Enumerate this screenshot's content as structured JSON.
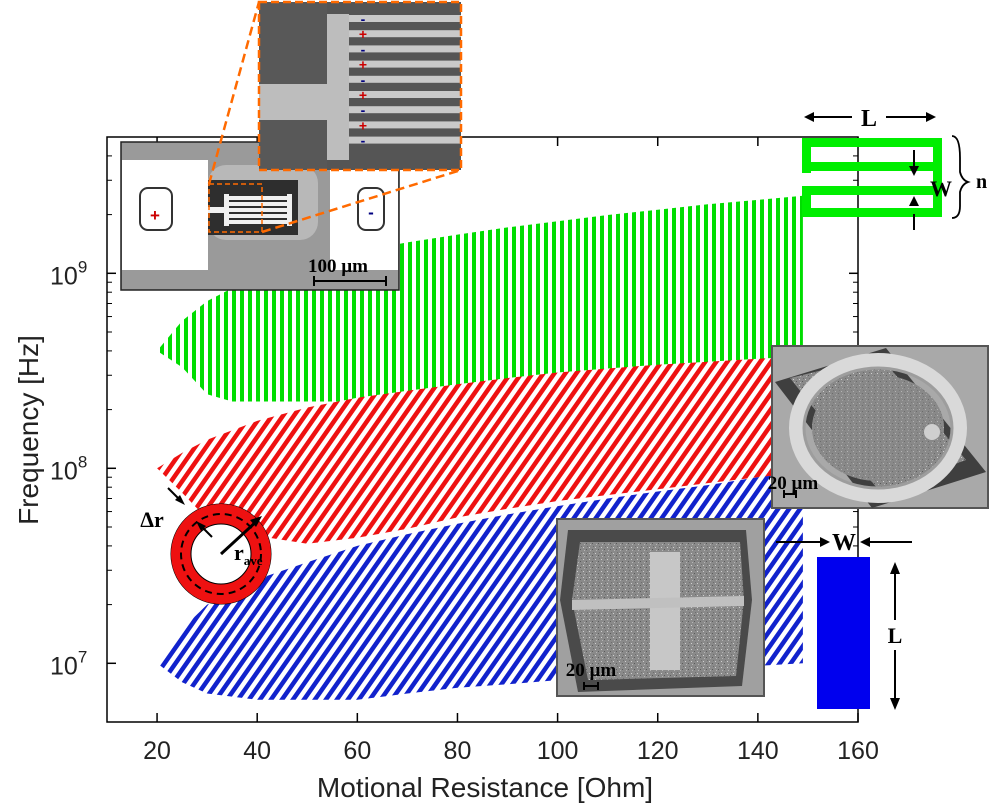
{
  "chart_data": {
    "type": "area",
    "title": "",
    "xlabel": "Motional Resistance [Ohm]",
    "ylabel": "Frequency [Hz]",
    "xlim": [
      10,
      160
    ],
    "ylim": [
      5000000,
      5000000000
    ],
    "yscale": "log",
    "xticks": [
      20,
      40,
      60,
      80,
      100,
      120,
      140,
      160
    ],
    "yticks": [
      {
        "value": 10000000,
        "base": "10",
        "exp": "7"
      },
      {
        "value": 100000000,
        "base": "10",
        "exp": "8"
      },
      {
        "value": 1000000000,
        "base": "10",
        "exp": "9"
      }
    ],
    "grid": false,
    "series": [
      {
        "color": "#00dd00",
        "hatch": "vertical",
        "x": [
          20,
          25,
          30,
          35,
          40,
          50,
          60,
          70,
          80,
          90,
          100,
          110,
          120,
          130,
          140,
          149
        ],
        "upper": [
          400000000,
          570000000,
          720000000,
          840000000,
          950000000,
          1120000000,
          1290000000,
          1440000000,
          1580000000,
          1720000000,
          1850000000,
          1990000000,
          2120000000,
          2260000000,
          2380000000,
          2500000000
        ],
        "lower": [
          400000000,
          330000000,
          240000000,
          220000000,
          220000000,
          220000000,
          220000000,
          220000000,
          220000000,
          220000000,
          220000000,
          220000000,
          220000000,
          220000000,
          220000000,
          220000000
        ]
      },
      {
        "color": "#ee1111",
        "hatch": "diagonal",
        "x": [
          20,
          25,
          30,
          40,
          50,
          60,
          70,
          80,
          90,
          100,
          110,
          120,
          130,
          140,
          150
        ],
        "upper": [
          100000000,
          120000000,
          140000000,
          175000000,
          205000000,
          230000000,
          250000000,
          270000000,
          290000000,
          310000000,
          325000000,
          340000000,
          352000000,
          365000000,
          375000000
        ],
        "lower": [
          100000000,
          75000000,
          55000000,
          45000000,
          41000000,
          44000000,
          49000000,
          56000000,
          62000000,
          68000000,
          73000000,
          78000000,
          84000000,
          90000000,
          95000000
        ]
      },
      {
        "color": "#1122cc",
        "hatch": "diagonal",
        "x": [
          20,
          25,
          30,
          40,
          50,
          60,
          70,
          80,
          90,
          100,
          110,
          120,
          130,
          140,
          149
        ],
        "upper": [
          10000000,
          15000000,
          20000000,
          27000000,
          33000000,
          40000000,
          46000000,
          52000000,
          58000000,
          64000000,
          70000000,
          76000000,
          82000000,
          90000000,
          95000000
        ],
        "lower": [
          10000000,
          8000000,
          7000000,
          6500000,
          6500000,
          6500000,
          7000000,
          7500000,
          7800000,
          8200000,
          8600000,
          9000000,
          9300000,
          9700000,
          10000000
        ]
      }
    ]
  },
  "annotations": {
    "inset_top": {
      "plus": "+",
      "minus": "-",
      "scale": "100 µm"
    },
    "zoom": {
      "signs": [
        "-",
        "+",
        "-",
        "+",
        "-",
        "+",
        "-",
        "+",
        "-"
      ]
    },
    "comb_schematic": {
      "length": "L",
      "width": "W",
      "count": "n"
    },
    "ring_schematic": {
      "delta_r": "Δr",
      "radius": "r",
      "radius_sub": "ave"
    },
    "ring_sem": {
      "scale": "20 µm"
    },
    "beam_sem": {
      "scale": "20 µm"
    },
    "beam_schematic": {
      "width": "W",
      "length": "L"
    }
  },
  "colors": {
    "green": "#00dd00",
    "red": "#ee1111",
    "blue": "#1122cc",
    "orange": "#ff6a00",
    "bar": "#0000ee"
  }
}
